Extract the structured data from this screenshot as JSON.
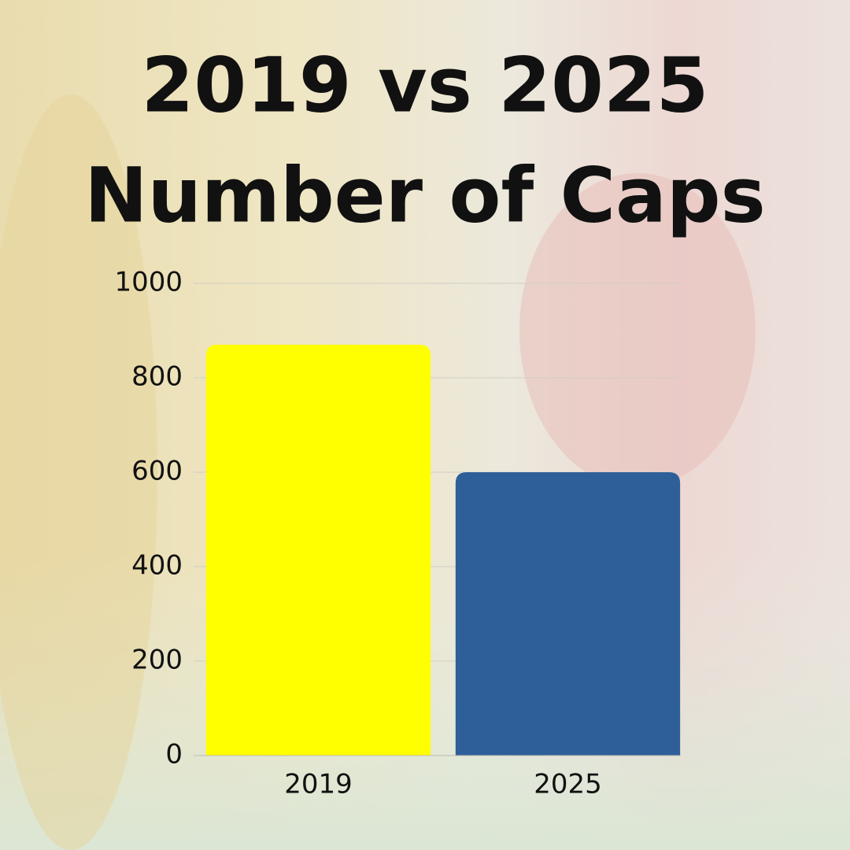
{
  "chart_data": {
    "type": "bar",
    "title": "2019 vs 2025",
    "subtitle": "Number of Caps",
    "categories": [
      "2019",
      "2025"
    ],
    "values": [
      870,
      600
    ],
    "colors": [
      "#ffff00",
      "#2e5f99"
    ],
    "ylim": [
      0,
      1000
    ],
    "yticks": [
      0,
      200,
      400,
      600,
      800,
      1000
    ],
    "grid": true
  }
}
